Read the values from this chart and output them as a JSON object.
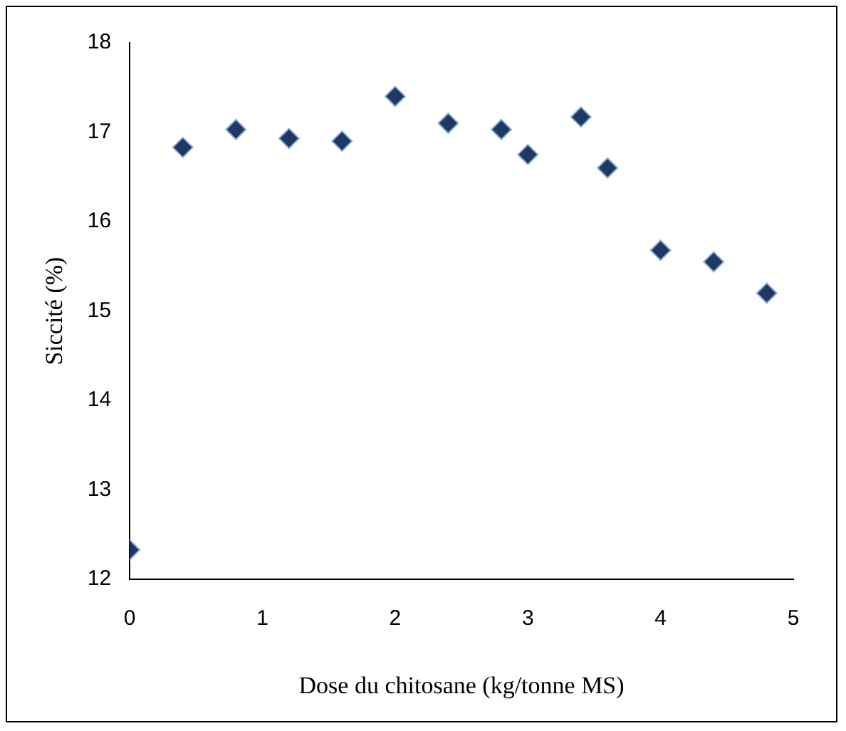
{
  "chart_data": {
    "type": "scatter",
    "xlabel": "Dose du chitosane (kg/tonne MS)",
    "ylabel": "Siccité (%)",
    "x": [
      0,
      0.4,
      0.8,
      1.2,
      1.6,
      2.0,
      2.4,
      2.8,
      3.0,
      3.4,
      3.6,
      4.0,
      4.4,
      4.8
    ],
    "values": [
      12.33,
      16.83,
      17.03,
      16.93,
      16.9,
      17.4,
      17.1,
      17.03,
      16.75,
      17.17,
      16.6,
      15.68,
      15.55,
      15.2
    ],
    "color": "#1f3864",
    "marker": "diamond",
    "grid": false,
    "legend": false,
    "xlim": [
      0,
      5
    ],
    "xticks": [
      0,
      1,
      2,
      3,
      4,
      5
    ],
    "ylim": [
      12,
      18
    ],
    "yticks": [
      12,
      13,
      14,
      15,
      16,
      17,
      18
    ]
  }
}
